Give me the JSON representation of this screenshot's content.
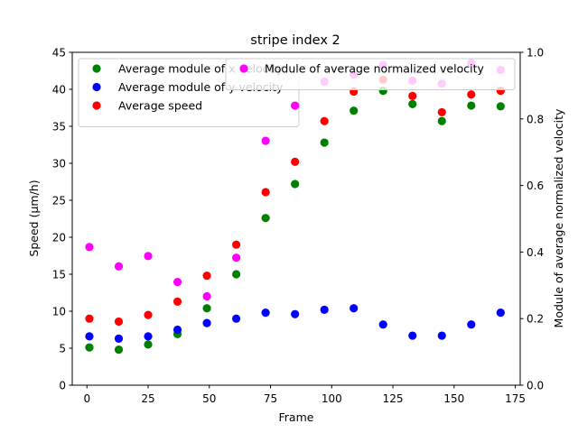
{
  "chart_data": {
    "type": "scatter",
    "title": "stripe index 2",
    "xlabel": "Frame",
    "ylabel": "Speed ($\\mu$m/h)",
    "ylabel_display": "Speed (μm/h)",
    "y2label": "Module of average normalized velocity",
    "xlim": [
      -6,
      177
    ],
    "ylim": [
      0,
      45
    ],
    "y2lim": [
      0,
      1
    ],
    "xticks": [
      "0",
      "25",
      "50",
      "75",
      "100",
      "125",
      "150",
      "175"
    ],
    "yticks": [
      "0",
      "5",
      "10",
      "15",
      "20",
      "25",
      "30",
      "35",
      "40",
      "45"
    ],
    "y2ticks": [
      "0.0",
      "0.2",
      "0.4",
      "0.6",
      "0.8",
      "1.0"
    ],
    "grid": false,
    "legend_left_placement": "upper-left",
    "legend_right_placement": "upper-right",
    "series": [
      {
        "name": "Average module of x velocity",
        "axis": "left",
        "color": "#008000",
        "x": [
          1,
          13,
          25,
          37,
          49,
          61,
          73,
          85,
          97,
          109,
          121,
          133,
          145,
          157,
          169
        ],
        "y": [
          5.1,
          4.8,
          5.5,
          6.9,
          10.4,
          15.0,
          22.6,
          27.2,
          32.8,
          37.1,
          39.8,
          38.0,
          35.7,
          37.8,
          37.7
        ]
      },
      {
        "name": "Average module of y velocity",
        "axis": "left",
        "color": "#0000ff",
        "x": [
          1,
          13,
          25,
          37,
          49,
          61,
          73,
          85,
          97,
          109,
          121,
          133,
          145,
          157,
          169
        ],
        "y": [
          6.6,
          6.3,
          6.6,
          7.5,
          8.4,
          9.0,
          9.8,
          9.6,
          10.2,
          10.4,
          8.2,
          6.7,
          6.7,
          8.2,
          9.8
        ]
      },
      {
        "name": "Average speed",
        "axis": "left",
        "color": "#ff0000",
        "x": [
          1,
          13,
          25,
          37,
          49,
          61,
          73,
          85,
          97,
          109,
          121,
          133,
          145,
          157,
          169
        ],
        "y": [
          9.0,
          8.6,
          9.5,
          11.3,
          14.8,
          19.0,
          26.1,
          30.2,
          35.7,
          39.7,
          41.3,
          39.1,
          36.9,
          39.3,
          39.8
        ]
      },
      {
        "name": "Module of average normalized velocity",
        "axis": "right",
        "color": "#ff00ff",
        "x": [
          1,
          13,
          25,
          37,
          49,
          61,
          73,
          85,
          97,
          109,
          121,
          133,
          145,
          157,
          169
        ],
        "y": [
          0.415,
          0.357,
          0.388,
          0.31,
          0.267,
          0.383,
          0.734,
          0.84,
          0.912,
          0.933,
          0.962,
          0.915,
          0.906,
          0.968,
          0.947
        ]
      }
    ]
  }
}
